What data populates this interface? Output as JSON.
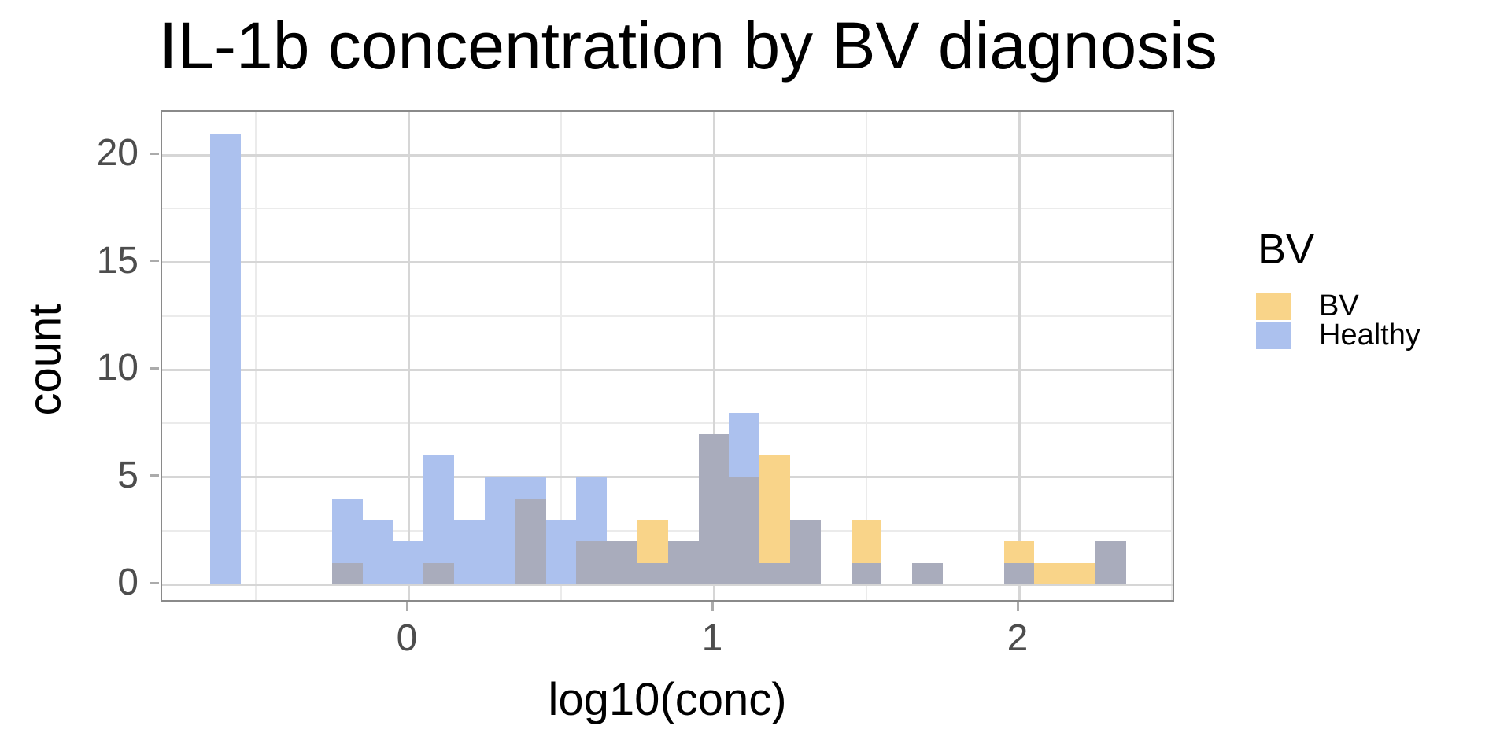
{
  "chart_data": {
    "type": "histogram",
    "title": "IL-1b concentration by BV diagnosis",
    "xlabel": "log10(conc)",
    "ylabel": "count",
    "binwidth": 0.1,
    "xlim": [
      -0.8,
      2.5
    ],
    "ylim": [
      -1,
      22
    ],
    "x_ticks": [
      {
        "value": 0,
        "label": "0"
      },
      {
        "value": 1,
        "label": "1"
      },
      {
        "value": 2,
        "label": "2"
      }
    ],
    "x_minor_ticks": [
      -0.5,
      0.5,
      1.5,
      2.5
    ],
    "y_ticks": [
      {
        "value": 0,
        "label": "0"
      },
      {
        "value": 5,
        "label": "5"
      },
      {
        "value": 10,
        "label": "10"
      },
      {
        "value": 15,
        "label": "15"
      },
      {
        "value": 20,
        "label": "20"
      }
    ],
    "y_minor_ticks": [
      2.5,
      7.5,
      12.5,
      17.5
    ],
    "grid": "on",
    "legend_position": "right",
    "series": [
      {
        "name": "BV",
        "color": "#F9D489"
      },
      {
        "name": "Healthy",
        "color": "#ACC1EE"
      }
    ],
    "overlap_color": "#A9ACBC",
    "bins": [
      {
        "x": -0.6,
        "bv": 0,
        "healthy": 21
      },
      {
        "x": -0.2,
        "bv": 1,
        "healthy": 4
      },
      {
        "x": -0.1,
        "bv": 0,
        "healthy": 3
      },
      {
        "x": 0.0,
        "bv": 0,
        "healthy": 2
      },
      {
        "x": 0.1,
        "bv": 1,
        "healthy": 6
      },
      {
        "x": 0.2,
        "bv": 0,
        "healthy": 3
      },
      {
        "x": 0.3,
        "bv": 0,
        "healthy": 5
      },
      {
        "x": 0.4,
        "bv": 4,
        "healthy": 5
      },
      {
        "x": 0.5,
        "bv": 0,
        "healthy": 3
      },
      {
        "x": 0.6,
        "bv": 2,
        "healthy": 5
      },
      {
        "x": 0.7,
        "bv": 2,
        "healthy": 2
      },
      {
        "x": 0.8,
        "bv": 3,
        "healthy": 1
      },
      {
        "x": 0.9,
        "bv": 2,
        "healthy": 2
      },
      {
        "x": 1.0,
        "bv": 7,
        "healthy": 7
      },
      {
        "x": 1.1,
        "bv": 5,
        "healthy": 8
      },
      {
        "x": 1.2,
        "bv": 6,
        "healthy": 1
      },
      {
        "x": 1.3,
        "bv": 3,
        "healthy": 3
      },
      {
        "x": 1.5,
        "bv": 3,
        "healthy": 1
      },
      {
        "x": 1.7,
        "bv": 1,
        "healthy": 1
      },
      {
        "x": 2.0,
        "bv": 2,
        "healthy": 1
      },
      {
        "x": 2.1,
        "bv": 1,
        "healthy": 0
      },
      {
        "x": 2.2,
        "bv": 1,
        "healthy": 0
      },
      {
        "x": 2.3,
        "bv": 2,
        "healthy": 2
      }
    ]
  },
  "legend": {
    "title": "BV",
    "entries": [
      {
        "label": "BV",
        "color": "#F9D489"
      },
      {
        "label": "Healthy",
        "color": "#ACC1EE"
      }
    ]
  }
}
